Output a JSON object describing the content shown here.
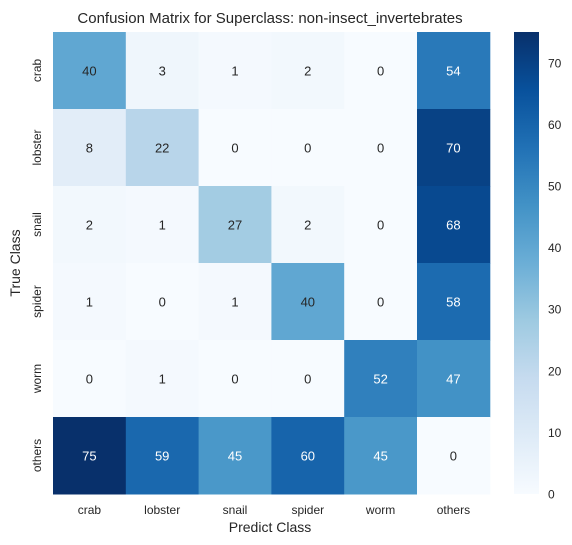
{
  "chart_data": {
    "type": "heatmap",
    "title": "Confusion Matrix for Superclass: non-insect_invertebrates",
    "xlabel": "Predict Class",
    "ylabel": "True Class",
    "x_categories": [
      "crab",
      "lobster",
      "snail",
      "spider",
      "worm",
      "others"
    ],
    "y_categories": [
      "crab",
      "lobster",
      "snail",
      "spider",
      "worm",
      "others"
    ],
    "values": [
      [
        40,
        3,
        1,
        2,
        0,
        54
      ],
      [
        8,
        22,
        0,
        0,
        0,
        70
      ],
      [
        2,
        1,
        27,
        2,
        0,
        68
      ],
      [
        1,
        0,
        1,
        40,
        0,
        58
      ],
      [
        0,
        1,
        0,
        0,
        52,
        47
      ],
      [
        75,
        59,
        45,
        60,
        45,
        0
      ]
    ],
    "colormap": "Blues",
    "colorbar": {
      "min": 0,
      "max": 75,
      "ticks": [
        0,
        10,
        20,
        30,
        40,
        50,
        60,
        70
      ]
    }
  }
}
